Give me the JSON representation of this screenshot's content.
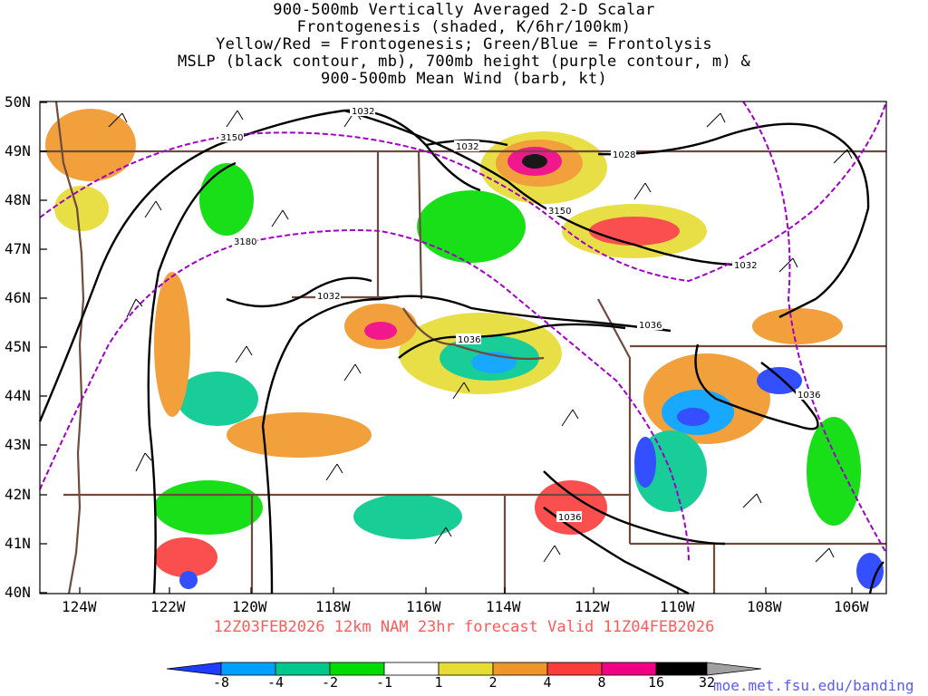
{
  "title_lines": [
    "900-500mb Vertically Averaged 2-D Scalar",
    "Frontogenesis (shaded, K/6hr/100km)",
    "Yellow/Red = Frontogenesis;  Green/Blue = Frontolysis",
    "MSLP (black contour, mb), 700mb height (purple contour, m) &",
    "900-500mb Mean Wind (barb, kt)"
  ],
  "subtitle": "12Z03FEB2026 12km NAM 23hr forecast Valid 11Z04FEB2026",
  "credit": "moe.met.fsu.edu/banding",
  "lat_labels": [
    "50N",
    "49N",
    "48N",
    "47N",
    "46N",
    "45N",
    "44N",
    "43N",
    "42N",
    "41N",
    "40N"
  ],
  "lon_labels": [
    "124W",
    "122W",
    "120W",
    "118W",
    "116W",
    "114W",
    "112W",
    "110W",
    "108W",
    "106W"
  ],
  "contour_labels": {
    "mslp": [
      "1032",
      "1032",
      "1028",
      "1032",
      "1032",
      "1036",
      "1036",
      "1036",
      "1036"
    ],
    "height": [
      "3150",
      "3180",
      "3150"
    ]
  },
  "colorbar": {
    "labels": [
      "-8",
      "-4",
      "-2",
      "-1",
      "1",
      "2",
      "4",
      "8",
      "16",
      "32"
    ],
    "colors": [
      "#1e3cff",
      "#00a0ff",
      "#00c88c",
      "#00dc00",
      "#ffffff",
      "#e6dc32",
      "#f09628",
      "#fa3c3c",
      "#f00082",
      "#000000",
      "#a0a0a0"
    ]
  },
  "colors": {
    "mslp": "#000000",
    "height": "#a000c8",
    "borders": "#6e4b3c",
    "barbs": "#000000"
  }
}
